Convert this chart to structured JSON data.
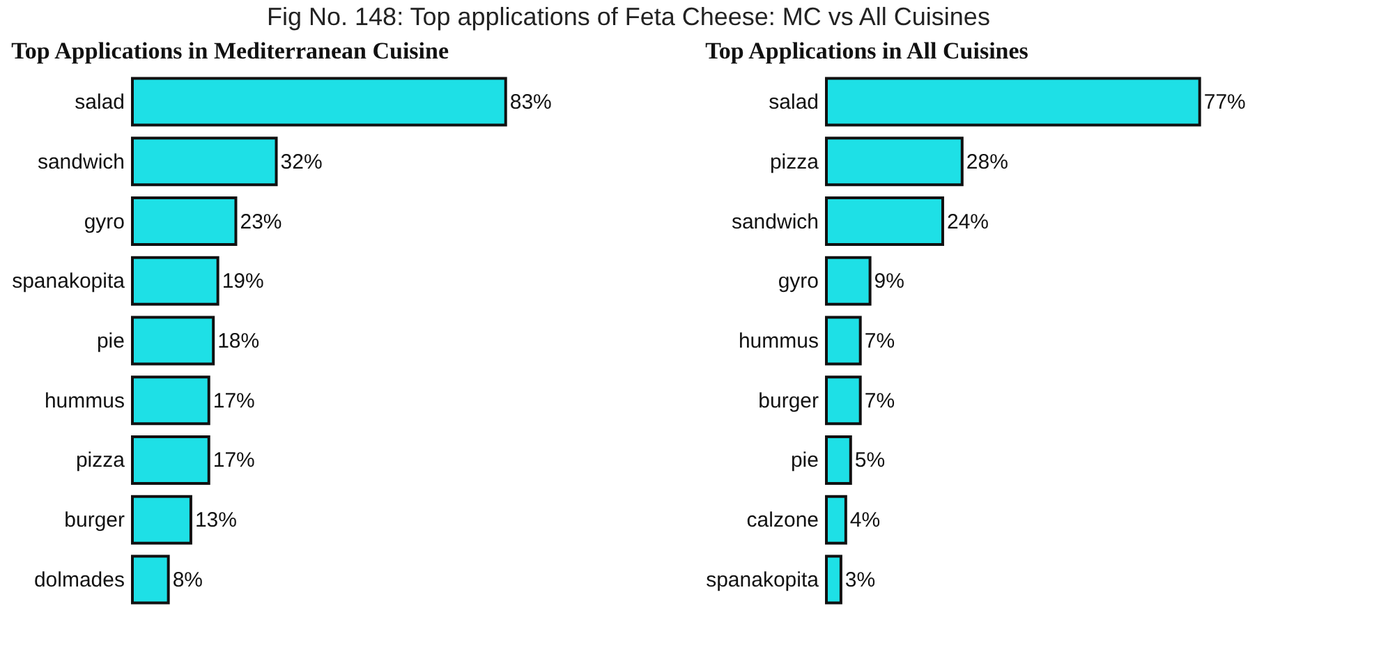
{
  "chart_data": [
    {
      "type": "bar",
      "orientation": "horizontal",
      "title": "Top Applications in Mediterranean Cuisine",
      "annotations": [
        "Fig No. 148: Top applications of Feta Cheese: MC vs All Cuisines"
      ],
      "tick_labels": "y",
      "categories": [
        "salad",
        "sandwich",
        "gyro",
        "spanakopita",
        "pie",
        "hummus",
        "pizza",
        "burger",
        "dolmades"
      ],
      "values": [
        83,
        32,
        23,
        19,
        18,
        17,
        17,
        13,
        8
      ],
      "value_labels": [
        "83%",
        "32%",
        "23%",
        "19%",
        "18%",
        "17%",
        "17%",
        "13%",
        "8%"
      ],
      "color": "#1ee0e6"
    },
    {
      "type": "bar",
      "orientation": "horizontal",
      "title": "Top Applications in All Cuisines",
      "tick_labels": "y",
      "categories": [
        "salad",
        "pizza",
        "sandwich",
        "gyro",
        "hummus",
        "burger",
        "pie",
        "calzone",
        "spanakopita"
      ],
      "values": [
        77,
        28,
        24,
        9,
        7,
        7,
        5,
        4,
        3
      ],
      "value_labels": [
        "77%",
        "28%",
        "24%",
        "9%",
        "7%",
        "7%",
        "5%",
        "4%",
        "3%"
      ],
      "color": "#1ee0e6"
    }
  ]
}
